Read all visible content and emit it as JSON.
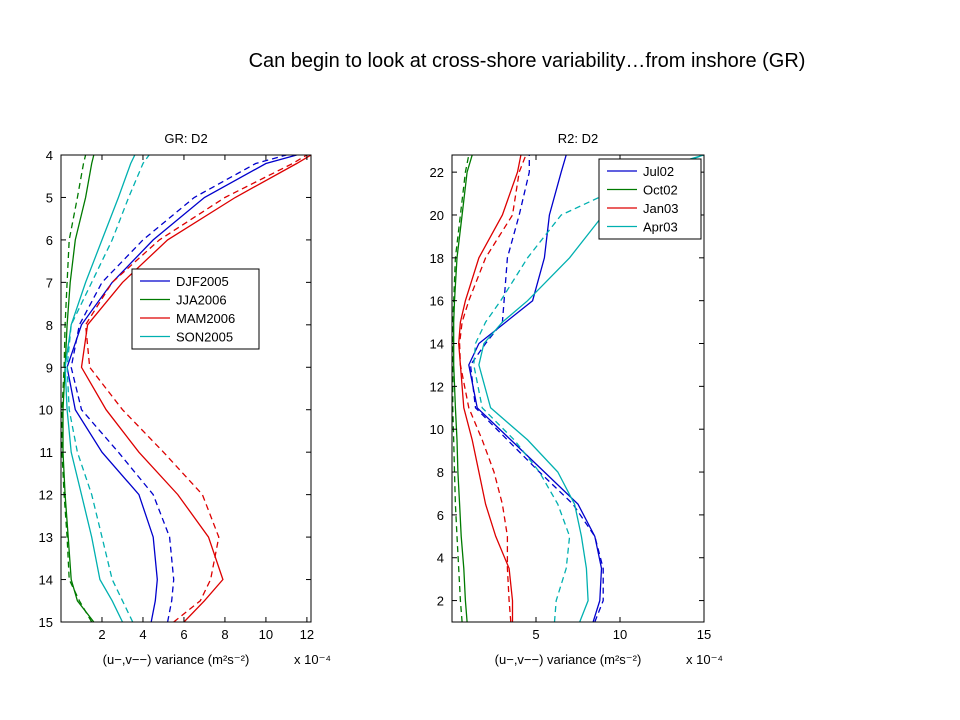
{
  "slide": {
    "title": "Can begin to look at cross-shore variability…from inshore (GR)"
  },
  "chart_data": [
    {
      "type": "line",
      "title": "GR: D2",
      "xlabel": "(u−,v−−) variance (m²s⁻²)",
      "xscale_label": "x 10⁻⁴",
      "ylabel": "",
      "xlim": [
        0,
        12.2
      ],
      "ylim": [
        4,
        15
      ],
      "y_reversed": true,
      "xticks": [
        2,
        4,
        6,
        8,
        10,
        12
      ],
      "yticks": [
        4,
        5,
        6,
        7,
        8,
        9,
        10,
        11,
        12,
        13,
        14,
        15
      ],
      "legend": {
        "placement": "center-right",
        "entries": [
          "DJF2005",
          "JJA2006",
          "MAM2006",
          "SON2005"
        ]
      },
      "series": [
        {
          "name": "DJF2005",
          "color": "#0000cc",
          "style": "solid",
          "x": [
            4.4,
            4.6,
            4.7,
            4.5,
            3.8,
            2.0,
            0.7,
            0.3,
            1.0,
            2.5,
            4.5,
            7.0,
            10.0,
            11.5
          ],
          "y": [
            15,
            14.5,
            14,
            13,
            12,
            11,
            10,
            9,
            8,
            7,
            6,
            5,
            4.2,
            4
          ]
        },
        {
          "name": "DJF2005",
          "color": "#0000cc",
          "style": "dashed",
          "x": [
            5.2,
            5.4,
            5.5,
            5.3,
            4.5,
            2.8,
            1.0,
            0.5,
            0.9,
            2.0,
            4.0,
            6.5,
            9.5,
            11.0
          ],
          "y": [
            15,
            14.5,
            14,
            13,
            12,
            11,
            10,
            9,
            8,
            7,
            6,
            5,
            4.2,
            4
          ]
        },
        {
          "name": "JJA2006",
          "color": "#007a00",
          "style": "solid",
          "x": [
            1.6,
            0.8,
            0.5,
            0.35,
            0.2,
            0.1,
            0.1,
            0.2,
            0.3,
            0.45,
            0.7,
            1.2,
            1.5,
            1.6
          ],
          "y": [
            15,
            14.5,
            14,
            13,
            12,
            11,
            10,
            9,
            8,
            7,
            6,
            5,
            4.2,
            4
          ]
        },
        {
          "name": "JJA2006",
          "color": "#007a00",
          "style": "dashed",
          "x": [
            1.5,
            0.9,
            0.4,
            0.3,
            0.15,
            0.05,
            0.05,
            0.15,
            0.2,
            0.3,
            0.4,
            0.8,
            1.1,
            1.2
          ],
          "y": [
            15,
            14.5,
            14,
            13,
            12,
            11,
            10,
            9,
            8,
            7,
            6,
            5,
            4.2,
            4
          ]
        },
        {
          "name": "MAM2006",
          "color": "#dd0000",
          "style": "solid",
          "x": [
            6.0,
            7.0,
            7.9,
            7.2,
            5.7,
            3.8,
            2.2,
            1.0,
            1.3,
            3.0,
            5.2,
            8.5,
            11.5,
            12.2
          ],
          "y": [
            15,
            14.5,
            14,
            13,
            12,
            11,
            10,
            9,
            8,
            7,
            6,
            5,
            4.2,
            4
          ]
        },
        {
          "name": "MAM2006",
          "color": "#dd0000",
          "style": "dashed",
          "x": [
            5.5,
            6.8,
            7.3,
            7.7,
            6.9,
            5.0,
            3.0,
            1.4,
            1.2,
            2.5,
            4.8,
            8.0,
            11.3,
            12.0
          ],
          "y": [
            15,
            14.5,
            14,
            13,
            12,
            11,
            10,
            9,
            8,
            7,
            6,
            5,
            4.2,
            4
          ]
        },
        {
          "name": "SON2005",
          "color": "#00b0b0",
          "style": "solid",
          "x": [
            3.0,
            2.5,
            1.9,
            1.5,
            1.0,
            0.5,
            0.3,
            0.2,
            0.5,
            1.2,
            2.0,
            2.8,
            3.4,
            3.6
          ],
          "y": [
            15,
            14.5,
            14,
            13,
            12,
            11,
            10,
            9,
            8,
            7,
            6,
            5,
            4.2,
            4
          ]
        },
        {
          "name": "SON2005",
          "color": "#00b0b0",
          "style": "dashed",
          "x": [
            3.5,
            3.0,
            2.5,
            2.0,
            1.5,
            0.8,
            0.4,
            0.3,
            0.5,
            1.5,
            2.5,
            3.3,
            4.0,
            4.3
          ],
          "y": [
            15,
            14.5,
            14,
            13,
            12,
            11,
            10,
            9,
            8,
            7,
            6,
            5,
            4.2,
            4
          ]
        }
      ]
    },
    {
      "type": "line",
      "title": "R2: D2",
      "xlabel": "(u−,v−−) variance (m²s⁻²)",
      "xscale_label": "x 10⁻⁴",
      "ylabel": "",
      "xlim": [
        0,
        15
      ],
      "ylim": [
        1,
        22.8
      ],
      "y_reversed": false,
      "xticks": [
        5,
        10,
        15
      ],
      "yticks": [
        2,
        4,
        6,
        8,
        10,
        12,
        14,
        16,
        18,
        20,
        22
      ],
      "legend": {
        "placement": "top-right",
        "entries": [
          "Jul02",
          "Oct02",
          "Jan03",
          "Apr03"
        ]
      },
      "series": [
        {
          "name": "Jul02",
          "color": "#0000cc",
          "style": "solid",
          "x": [
            8.4,
            8.8,
            8.9,
            8.5,
            7.5,
            5.5,
            3.5,
            1.5,
            1.0,
            1.6,
            3.2,
            4.8,
            5.5,
            5.8,
            6.5,
            6.8
          ],
          "y": [
            1.0,
            2.0,
            3.5,
            5.0,
            6.5,
            8.0,
            9.5,
            11.0,
            13.0,
            14.0,
            15.0,
            16.0,
            18.0,
            20.0,
            22.0,
            22.8
          ]
        },
        {
          "name": "Jul02",
          "color": "#0000cc",
          "style": "dashed",
          "x": [
            8.5,
            9.0,
            9.0,
            8.5,
            7.2,
            5.2,
            3.3,
            1.4,
            1.1,
            2.0,
            3.0,
            3.1,
            3.3,
            4.0,
            4.6,
            4.6
          ],
          "y": [
            1.0,
            2.0,
            3.5,
            5.0,
            6.5,
            8.0,
            9.5,
            11.0,
            13.0,
            14.0,
            15.0,
            16.0,
            18.0,
            20.0,
            22.0,
            22.8
          ]
        },
        {
          "name": "Oct02",
          "color": "#007a00",
          "style": "solid",
          "x": [
            0.9,
            0.8,
            0.7,
            0.55,
            0.45,
            0.35,
            0.3,
            0.2,
            0.1,
            0.1,
            0.1,
            0.15,
            0.3,
            0.6,
            0.9,
            1.2
          ],
          "y": [
            1.0,
            2.0,
            3.5,
            5.0,
            6.5,
            8.0,
            9.5,
            11.0,
            13.0,
            14.0,
            15.0,
            16.0,
            18.0,
            20.0,
            22.0,
            22.8
          ]
        },
        {
          "name": "Oct02",
          "color": "#007a00",
          "style": "dashed",
          "x": [
            0.6,
            0.5,
            0.4,
            0.3,
            0.2,
            0.15,
            0.1,
            0.05,
            0.05,
            0.05,
            0.05,
            0.1,
            0.2,
            0.5,
            0.8,
            1.0
          ],
          "y": [
            1.0,
            2.0,
            3.5,
            5.0,
            6.5,
            8.0,
            9.5,
            11.0,
            13.0,
            14.0,
            15.0,
            16.0,
            18.0,
            20.0,
            22.0,
            22.8
          ]
        },
        {
          "name": "Jan03",
          "color": "#dd0000",
          "style": "solid",
          "x": [
            3.6,
            3.6,
            3.4,
            2.6,
            2.0,
            1.6,
            1.2,
            0.7,
            0.5,
            0.4,
            0.5,
            0.8,
            1.6,
            3.0,
            3.9,
            4.1
          ],
          "y": [
            1.0,
            2.0,
            3.5,
            5.0,
            6.5,
            8.0,
            9.5,
            11.0,
            13.0,
            14.0,
            15.0,
            16.0,
            18.0,
            20.0,
            22.0,
            22.8
          ]
        },
        {
          "name": "Jan03",
          "color": "#dd0000",
          "style": "dashed",
          "x": [
            3.5,
            3.4,
            3.3,
            3.3,
            3.0,
            2.5,
            1.8,
            1.0,
            0.5,
            0.45,
            0.6,
            1.0,
            2.0,
            3.6,
            4.0,
            4.4
          ],
          "y": [
            1.0,
            2.0,
            3.5,
            5.0,
            6.5,
            8.0,
            9.5,
            11.0,
            13.0,
            14.0,
            15.0,
            16.0,
            18.0,
            20.0,
            22.0,
            22.8
          ]
        },
        {
          "name": "Apr03",
          "color": "#00b0b0",
          "style": "solid",
          "x": [
            7.6,
            8.1,
            8.0,
            7.7,
            7.3,
            6.3,
            4.5,
            2.3,
            1.6,
            1.9,
            3.0,
            4.5,
            7.0,
            9.0,
            11.5,
            15.0
          ],
          "y": [
            1.0,
            2.0,
            3.5,
            5.0,
            6.5,
            8.0,
            9.5,
            11.0,
            13.0,
            14.0,
            15.0,
            16.0,
            18.0,
            20.0,
            22.0,
            22.8
          ]
        },
        {
          "name": "Apr03",
          "color": "#00b0b0",
          "style": "dashed",
          "x": [
            6.1,
            6.2,
            6.8,
            7.0,
            6.3,
            5.2,
            3.7,
            1.8,
            1.3,
            1.4,
            2.0,
            2.9,
            4.5,
            6.5,
            12.0,
            15.0
          ],
          "y": [
            1.0,
            2.0,
            3.5,
            5.0,
            6.5,
            8.0,
            9.5,
            11.0,
            13.0,
            14.0,
            15.0,
            16.0,
            18.0,
            20.0,
            22.0,
            22.8
          ]
        }
      ]
    }
  ]
}
